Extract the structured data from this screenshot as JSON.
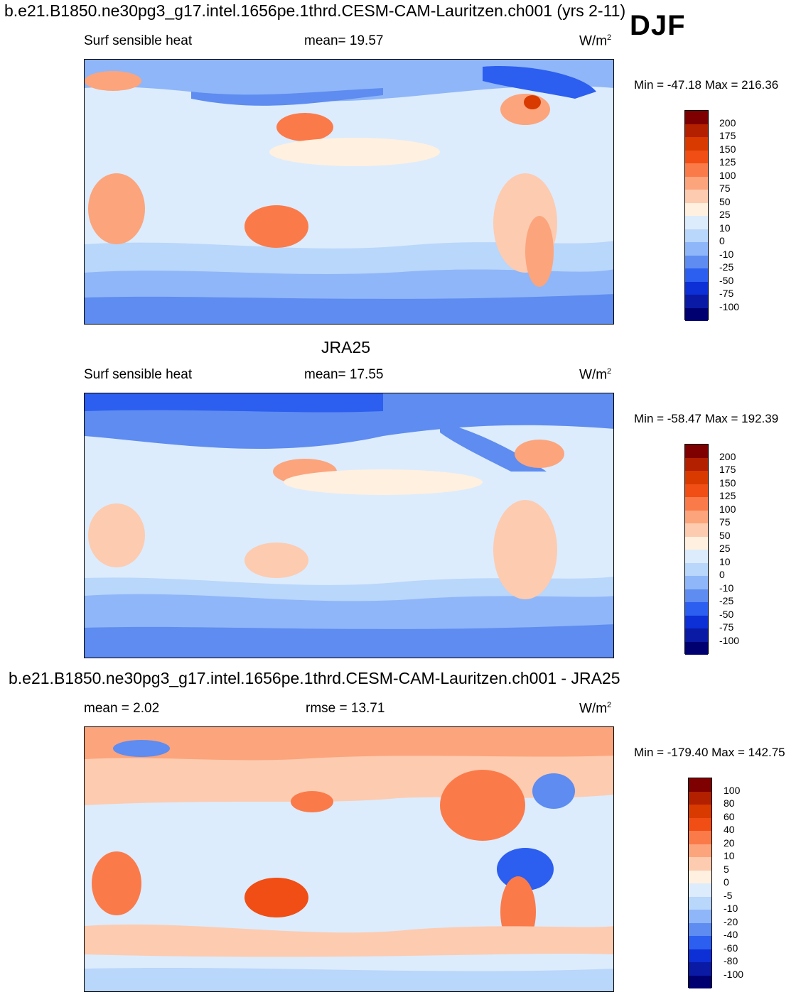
{
  "header": {
    "title": "b.e21.B1850.ne30pg3_g17.intel.1656pe.1thrd.CESM-CAM-Lauritzen.ch001 (yrs 2-11)",
    "season": "DJF"
  },
  "panels": [
    {
      "id": "model",
      "left_label": "Surf sensible heat",
      "center_label": "mean=  19.57",
      "units": "W/m",
      "units_sup": "2",
      "minmax": "Min = -47.18 Max = 216.36"
    },
    {
      "id": "obs",
      "title": "JRA25",
      "left_label": "Surf sensible heat",
      "center_label": "mean=  17.55",
      "units": "W/m",
      "units_sup": "2",
      "minmax": "Min = -58.47 Max = 192.39"
    },
    {
      "id": "diff",
      "title": "b.e21.B1850.ne30pg3_g17.intel.1656pe.1thrd.CESM-CAM-Lauritzen.ch001 - JRA25",
      "left_label": "mean =    2.02",
      "center_label": "rmse =  13.71",
      "units": "W/m",
      "units_sup": "2",
      "minmax": "Min = -179.40 Max = 142.75"
    }
  ],
  "colorbars": {
    "field": {
      "labels": [
        "200",
        "175",
        "150",
        "125",
        "100",
        "75",
        "50",
        "25",
        "10",
        "0",
        "-10",
        "-25",
        "-50",
        "-75",
        "-100"
      ],
      "colors": [
        "#7f0000",
        "#b22000",
        "#d93a00",
        "#f04e14",
        "#fb7a4a",
        "#fca47c",
        "#fdcbb0",
        "#fff0e0",
        "#dcecfc",
        "#b9d6fb",
        "#8fb6f8",
        "#5e8cf0",
        "#2c5ef0",
        "#0d2fd6",
        "#0a1aa5",
        "#000070"
      ]
    },
    "diff": {
      "labels": [
        "100",
        "80",
        "60",
        "40",
        "20",
        "10",
        "5",
        "0",
        "-5",
        "-10",
        "-20",
        "-40",
        "-60",
        "-80",
        "-100"
      ],
      "colors": [
        "#7f0000",
        "#b22000",
        "#d93a00",
        "#f04e14",
        "#fb7a4a",
        "#fca47c",
        "#fdcbb0",
        "#fff0e0",
        "#dcecfc",
        "#b9d6fb",
        "#8fb6f8",
        "#5e8cf0",
        "#2c5ef0",
        "#0d2fd6",
        "#0a1aa5",
        "#000070"
      ]
    }
  },
  "chart_data": [
    {
      "type": "heatmap",
      "title": "b.e21.B1850.ne30pg3_g17.intel.1656pe.1thrd.CESM-CAM-Lauritzen.ch001 (yrs 2-11)",
      "subtitle": "Surf sensible heat",
      "season": "DJF",
      "mean": 19.57,
      "min": -47.18,
      "max": 216.36,
      "units": "W/m2",
      "contour_levels": [
        -100,
        -75,
        -50,
        -25,
        -10,
        0,
        10,
        25,
        50,
        75,
        100,
        125,
        150,
        175,
        200
      ]
    },
    {
      "type": "heatmap",
      "title": "JRA25",
      "subtitle": "Surf sensible heat",
      "mean": 17.55,
      "min": -58.47,
      "max": 192.39,
      "units": "W/m2",
      "contour_levels": [
        -100,
        -75,
        -50,
        -25,
        -10,
        0,
        10,
        25,
        50,
        75,
        100,
        125,
        150,
        175,
        200
      ]
    },
    {
      "type": "heatmap",
      "title": "b.e21.B1850.ne30pg3_g17.intel.1656pe.1thrd.CESM-CAM-Lauritzen.ch001 - JRA25",
      "mean": 2.02,
      "rmse": 13.71,
      "min": -179.4,
      "max": 142.75,
      "units": "W/m2",
      "contour_levels": [
        -100,
        -80,
        -60,
        -40,
        -20,
        -10,
        -5,
        0,
        5,
        10,
        20,
        40,
        60,
        80,
        100
      ]
    }
  ]
}
